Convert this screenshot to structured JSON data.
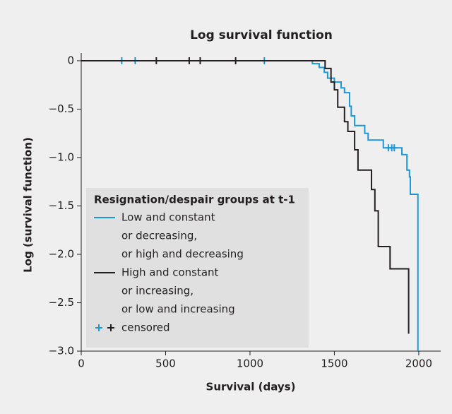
{
  "chart_data": {
    "type": "step",
    "title": "Log survival function",
    "xlabel": "Survival (days)",
    "ylabel": "Log (survival function)",
    "xlim": [
      0,
      2130
    ],
    "ylim": [
      -3.0,
      0.08
    ],
    "xticks": [
      0,
      500,
      1000,
      1500,
      2000
    ],
    "yticks": [
      0,
      {
        "value": -0.5,
        "label": "−0.5"
      },
      {
        "value": -1.0,
        "label": "−1.0"
      },
      {
        "value": -1.5,
        "label": "−1.5"
      },
      {
        "value": -2.0,
        "label": "−2.0"
      },
      {
        "value": -2.5,
        "label": "−2.5"
      },
      {
        "value": -3.0,
        "label": "−3.0"
      }
    ],
    "legend_title": "Resignation/despair groups at t-1",
    "censored_label": "censored",
    "series": [
      {
        "name": [
          "Low and constant",
          "or decreasing,",
          "or high and decreasing"
        ],
        "color": "#1b98d5",
        "x": [
          0,
          1370,
          1410,
          1440,
          1460,
          1500,
          1540,
          1560,
          1590,
          1600,
          1620,
          1680,
          1700,
          1790,
          1900,
          1930,
          1945,
          1950,
          1995
        ],
        "values": [
          0,
          -0.03,
          -0.07,
          -0.12,
          -0.18,
          -0.22,
          -0.28,
          -0.33,
          -0.47,
          -0.57,
          -0.67,
          -0.75,
          -0.82,
          -0.9,
          -0.97,
          -1.13,
          -1.2,
          -1.38,
          -3.0
        ],
        "censored_x": [
          240,
          320,
          1085,
          1820,
          1840,
          1855
        ],
        "censored_values": [
          0,
          0,
          0,
          -0.9,
          -0.9,
          -0.9
        ]
      },
      {
        "name": [
          "High and constant",
          "or increasing,",
          "or low and increasing"
        ],
        "color": "#231f20",
        "x": [
          0,
          1445,
          1480,
          1500,
          1520,
          1560,
          1580,
          1620,
          1640,
          1720,
          1740,
          1760,
          1830,
          1940
        ],
        "values": [
          0,
          -0.08,
          -0.22,
          -0.3,
          -0.48,
          -0.63,
          -0.73,
          -0.92,
          -1.13,
          -1.33,
          -1.55,
          -1.92,
          -2.15,
          -2.82
        ],
        "censored_x": [
          445,
          640,
          705,
          915
        ],
        "censored_values": [
          0,
          0,
          0,
          0
        ]
      }
    ]
  }
}
